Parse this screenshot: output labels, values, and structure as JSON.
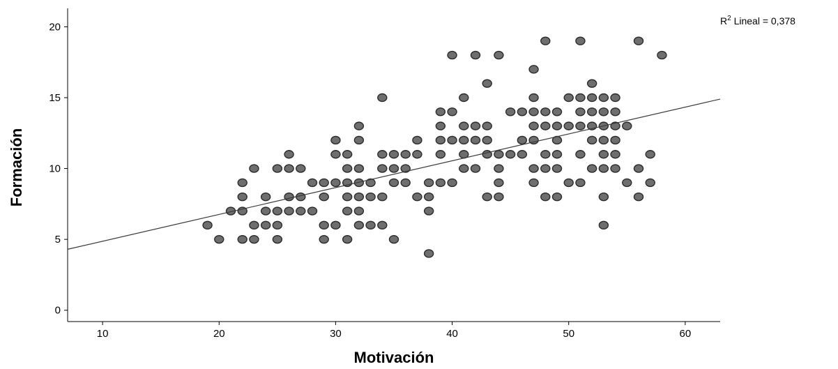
{
  "chart_data": {
    "type": "scatter",
    "title": "",
    "xlabel": "Motivación",
    "ylabel": "Formación",
    "xlim": [
      7,
      63
    ],
    "ylim": [
      -0.8,
      21.3
    ],
    "xticks": [
      10,
      20,
      30,
      40,
      50,
      60
    ],
    "yticks": [
      0,
      5,
      10,
      15,
      20
    ],
    "grid": false,
    "annotation": {
      "prefix": "R",
      "superscript": "2",
      "text": " Lineal = 0,378"
    },
    "fit_line": {
      "type": "linear",
      "x_start": 7,
      "y_start": 4.3,
      "x_end": 63,
      "y_end": 14.9
    },
    "point_color": "#6e6e6e",
    "point_stroke": "#2b2b2b",
    "line_color": "#3a3a3a",
    "points": [
      [
        19,
        6
      ],
      [
        20,
        5
      ],
      [
        21,
        7
      ],
      [
        22,
        9
      ],
      [
        22,
        8
      ],
      [
        22,
        7
      ],
      [
        22,
        5
      ],
      [
        23,
        10
      ],
      [
        23,
        6
      ],
      [
        23,
        5
      ],
      [
        24,
        8
      ],
      [
        24,
        7
      ],
      [
        24,
        6
      ],
      [
        25,
        10
      ],
      [
        25,
        7
      ],
      [
        25,
        6
      ],
      [
        25,
        5
      ],
      [
        26,
        11
      ],
      [
        26,
        10
      ],
      [
        26,
        8
      ],
      [
        26,
        7
      ],
      [
        27,
        10
      ],
      [
        27,
        8
      ],
      [
        27,
        7
      ],
      [
        28,
        7
      ],
      [
        28,
        9
      ],
      [
        29,
        9
      ],
      [
        29,
        8
      ],
      [
        29,
        6
      ],
      [
        29,
        5
      ],
      [
        30,
        12
      ],
      [
        30,
        11
      ],
      [
        30,
        9
      ],
      [
        30,
        6
      ],
      [
        31,
        11
      ],
      [
        31,
        10
      ],
      [
        31,
        9
      ],
      [
        31,
        8
      ],
      [
        31,
        7
      ],
      [
        31,
        5
      ],
      [
        32,
        13
      ],
      [
        32,
        12
      ],
      [
        32,
        10
      ],
      [
        32,
        9
      ],
      [
        32,
        8
      ],
      [
        32,
        7
      ],
      [
        32,
        6
      ],
      [
        33,
        9
      ],
      [
        33,
        8
      ],
      [
        33,
        6
      ],
      [
        34,
        15
      ],
      [
        34,
        11
      ],
      [
        34,
        10
      ],
      [
        34,
        8
      ],
      [
        34,
        6
      ],
      [
        35,
        11
      ],
      [
        35,
        10
      ],
      [
        35,
        9
      ],
      [
        35,
        5
      ],
      [
        36,
        11
      ],
      [
        36,
        10
      ],
      [
        36,
        9
      ],
      [
        37,
        12
      ],
      [
        37,
        11
      ],
      [
        37,
        8
      ],
      [
        38,
        9
      ],
      [
        38,
        8
      ],
      [
        38,
        7
      ],
      [
        38,
        4
      ],
      [
        39,
        14
      ],
      [
        39,
        13
      ],
      [
        39,
        12
      ],
      [
        39,
        11
      ],
      [
        39,
        9
      ],
      [
        40,
        18
      ],
      [
        40,
        14
      ],
      [
        40,
        12
      ],
      [
        40,
        9
      ],
      [
        41,
        15
      ],
      [
        41,
        13
      ],
      [
        41,
        12
      ],
      [
        41,
        11
      ],
      [
        41,
        10
      ],
      [
        42,
        18
      ],
      [
        42,
        13
      ],
      [
        42,
        12
      ],
      [
        42,
        10
      ],
      [
        43,
        16
      ],
      [
        43,
        13
      ],
      [
        43,
        12
      ],
      [
        43,
        11
      ],
      [
        43,
        8
      ],
      [
        44,
        18
      ],
      [
        44,
        11
      ],
      [
        44,
        10
      ],
      [
        44,
        9
      ],
      [
        44,
        8
      ],
      [
        45,
        14
      ],
      [
        45,
        11
      ],
      [
        46,
        14
      ],
      [
        46,
        12
      ],
      [
        46,
        11
      ],
      [
        47,
        17
      ],
      [
        47,
        15
      ],
      [
        47,
        14
      ],
      [
        47,
        13
      ],
      [
        47,
        12
      ],
      [
        47,
        10
      ],
      [
        47,
        9
      ],
      [
        48,
        19
      ],
      [
        48,
        14
      ],
      [
        48,
        13
      ],
      [
        48,
        11
      ],
      [
        48,
        10
      ],
      [
        48,
        8
      ],
      [
        49,
        14
      ],
      [
        49,
        13
      ],
      [
        49,
        12
      ],
      [
        49,
        11
      ],
      [
        49,
        10
      ],
      [
        49,
        8
      ],
      [
        50,
        15
      ],
      [
        50,
        13
      ],
      [
        50,
        9
      ],
      [
        51,
        19
      ],
      [
        51,
        15
      ],
      [
        51,
        14
      ],
      [
        51,
        13
      ],
      [
        51,
        11
      ],
      [
        51,
        9
      ],
      [
        52,
        16
      ],
      [
        52,
        15
      ],
      [
        52,
        14
      ],
      [
        52,
        13
      ],
      [
        52,
        12
      ],
      [
        52,
        10
      ],
      [
        53,
        15
      ],
      [
        53,
        14
      ],
      [
        53,
        13
      ],
      [
        53,
        12
      ],
      [
        53,
        11
      ],
      [
        53,
        10
      ],
      [
        53,
        8
      ],
      [
        53,
        6
      ],
      [
        54,
        15
      ],
      [
        54,
        14
      ],
      [
        54,
        13
      ],
      [
        54,
        12
      ],
      [
        54,
        11
      ],
      [
        54,
        10
      ],
      [
        55,
        13
      ],
      [
        55,
        9
      ],
      [
        56,
        19
      ],
      [
        56,
        10
      ],
      [
        56,
        8
      ],
      [
        57,
        11
      ],
      [
        57,
        9
      ],
      [
        58,
        18
      ]
    ]
  }
}
